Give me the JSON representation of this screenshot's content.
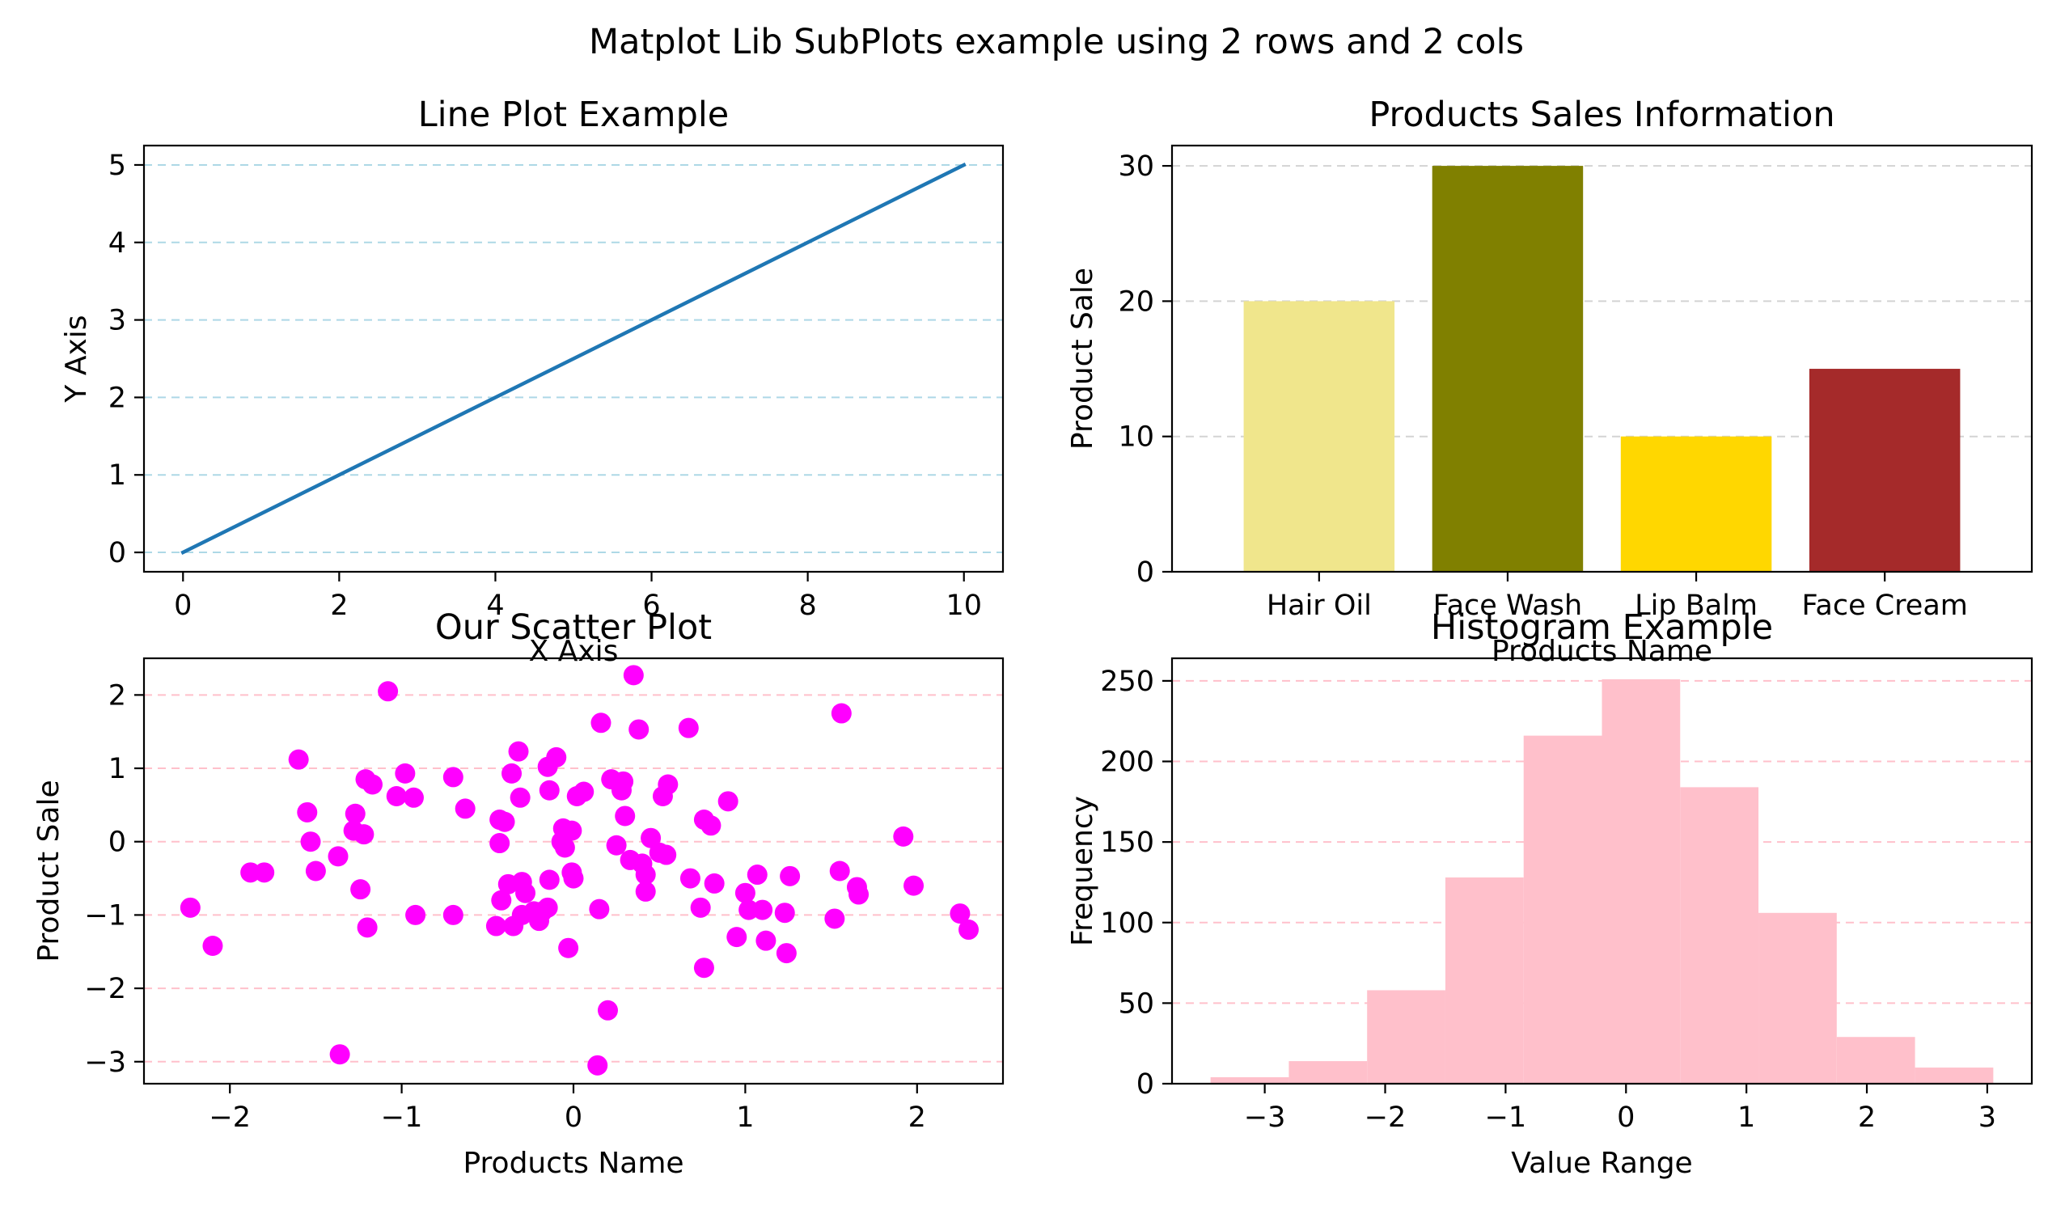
{
  "figure": {
    "suptitle": "Matplot Lib SubPlots example using 2 rows and 2 cols"
  },
  "chart_data": [
    {
      "type": "line",
      "title": "Line Plot Example",
      "xlabel": "X Axis",
      "ylabel": "Y Axis",
      "x": [
        0,
        10
      ],
      "y": [
        0,
        5
      ],
      "xlim": [
        -0.5,
        10.5
      ],
      "ylim": [
        -0.25,
        5.25
      ],
      "xticks": [
        0,
        2,
        4,
        6,
        8,
        10
      ],
      "yticks": [
        0,
        1,
        2,
        3,
        4,
        5
      ],
      "xtick_labels": [
        "0",
        "2",
        "4",
        "6",
        "8",
        "10"
      ],
      "ytick_labels": [
        "0",
        "1",
        "2",
        "3",
        "4",
        "5"
      ],
      "line_color": "#1f77b4",
      "grid": "y-axis dashed",
      "grid_color": "#add8e6"
    },
    {
      "type": "bar",
      "title": "Products Sales Information",
      "xlabel": "Products Name",
      "ylabel": "Product Sale",
      "categories": [
        "Hair Oil",
        "Face Wash",
        "Lip Balm",
        "Face Cream"
      ],
      "values": [
        20,
        30,
        10,
        15
      ],
      "colors": [
        "#f0e68c",
        "#808000",
        "#ffd700",
        "#a52a2a"
      ],
      "ylim": [
        0,
        31.5
      ],
      "yticks": [
        0,
        10,
        20,
        30
      ],
      "ytick_labels": [
        "0",
        "10",
        "20",
        "30"
      ],
      "grid": "y-axis dashed",
      "grid_color": "#d3d3d3"
    },
    {
      "type": "scatter",
      "title": "Our Scatter Plot",
      "xlabel": "Products Name",
      "ylabel": "Product Sale",
      "marker_color": "#ff00ff",
      "xlim": [
        -2.5,
        2.5
      ],
      "ylim": [
        -3.3,
        2.5
      ],
      "xticks": [
        -2,
        -1,
        0,
        1,
        2
      ],
      "yticks": [
        -3,
        -2,
        -1,
        0,
        1,
        2
      ],
      "xtick_labels": [
        "−2",
        "−1",
        "0",
        "1",
        "2"
      ],
      "ytick_labels": [
        "−3",
        "−2",
        "−1",
        "0",
        "1",
        "2"
      ],
      "grid": "y-axis dashed",
      "grid_color": "#ffc0cb",
      "points": [
        [
          -2.23,
          -0.9
        ],
        [
          -2.1,
          -1.42
        ],
        [
          -1.88,
          -0.42
        ],
        [
          -1.8,
          -0.42
        ],
        [
          -1.6,
          1.12
        ],
        [
          -1.55,
          0.4
        ],
        [
          -1.53,
          0.0
        ],
        [
          -1.5,
          -0.4
        ],
        [
          -1.37,
          -0.2
        ],
        [
          -1.36,
          -2.9
        ],
        [
          -1.28,
          0.15
        ],
        [
          -1.27,
          0.38
        ],
        [
          -1.24,
          -0.65
        ],
        [
          -1.22,
          0.1
        ],
        [
          -1.21,
          0.85
        ],
        [
          -1.2,
          -1.17
        ],
        [
          -1.17,
          0.78
        ],
        [
          -1.08,
          2.05
        ],
        [
          -1.03,
          0.62
        ],
        [
          -0.98,
          0.93
        ],
        [
          -0.93,
          0.6
        ],
        [
          -0.92,
          -1.0
        ],
        [
          -0.7,
          0.88
        ],
        [
          -0.7,
          -1.0
        ],
        [
          -0.63,
          0.45
        ],
        [
          -0.45,
          -1.15
        ],
        [
          -0.43,
          0.3
        ],
        [
          -0.43,
          -0.02
        ],
        [
          -0.42,
          -0.8
        ],
        [
          -0.4,
          0.27
        ],
        [
          -0.38,
          -0.58
        ],
        [
          -0.36,
          0.93
        ],
        [
          -0.35,
          -1.15
        ],
        [
          -0.32,
          1.23
        ],
        [
          -0.31,
          0.6
        ],
        [
          -0.3,
          -0.55
        ],
        [
          -0.3,
          -1.0
        ],
        [
          -0.28,
          -0.7
        ],
        [
          -0.23,
          -0.95
        ],
        [
          -0.2,
          -1.08
        ],
        [
          -0.18,
          -0.95
        ],
        [
          -0.15,
          -0.9
        ],
        [
          -0.15,
          1.02
        ],
        [
          -0.14,
          -0.52
        ],
        [
          -0.14,
          0.7
        ],
        [
          -0.1,
          1.15
        ],
        [
          -0.07,
          0.0
        ],
        [
          -0.06,
          0.18
        ],
        [
          -0.05,
          -0.08
        ],
        [
          -0.03,
          -1.45
        ],
        [
          -0.01,
          0.15
        ],
        [
          -0.01,
          -0.42
        ],
        [
          0.0,
          -0.5
        ],
        [
          0.02,
          0.62
        ],
        [
          0.06,
          0.68
        ],
        [
          0.14,
          -3.05
        ],
        [
          0.15,
          -0.92
        ],
        [
          0.16,
          1.62
        ],
        [
          0.2,
          -2.3
        ],
        [
          0.22,
          0.85
        ],
        [
          0.25,
          -0.05
        ],
        [
          0.28,
          0.7
        ],
        [
          0.29,
          0.82
        ],
        [
          0.3,
          0.35
        ],
        [
          0.33,
          -0.25
        ],
        [
          0.35,
          2.27
        ],
        [
          0.38,
          1.53
        ],
        [
          0.4,
          -0.3
        ],
        [
          0.42,
          -0.45
        ],
        [
          0.42,
          -0.68
        ],
        [
          0.45,
          0.05
        ],
        [
          0.5,
          -0.15
        ],
        [
          0.52,
          0.62
        ],
        [
          0.54,
          -0.18
        ],
        [
          0.55,
          0.78
        ],
        [
          0.67,
          1.55
        ],
        [
          0.68,
          -0.5
        ],
        [
          0.74,
          -0.9
        ],
        [
          0.76,
          0.3
        ],
        [
          0.76,
          -1.72
        ],
        [
          0.8,
          0.22
        ],
        [
          0.82,
          -0.57
        ],
        [
          0.9,
          0.55
        ],
        [
          0.95,
          -1.3
        ],
        [
          1.0,
          -0.7
        ],
        [
          1.02,
          -0.93
        ],
        [
          1.07,
          -0.45
        ],
        [
          1.1,
          -0.93
        ],
        [
          1.12,
          -1.35
        ],
        [
          1.23,
          -0.97
        ],
        [
          1.24,
          -1.52
        ],
        [
          1.26,
          -0.47
        ],
        [
          1.52,
          -1.05
        ],
        [
          1.55,
          -0.4
        ],
        [
          1.56,
          1.75
        ],
        [
          1.65,
          -0.62
        ],
        [
          1.66,
          -0.72
        ],
        [
          1.92,
          0.07
        ],
        [
          1.98,
          -0.6
        ],
        [
          2.25,
          -0.98
        ],
        [
          2.3,
          -1.2
        ]
      ]
    },
    {
      "type": "bar",
      "subtype": "histogram",
      "title": "Histogram Example",
      "xlabel": "Value Range",
      "ylabel": "Frequency",
      "bar_color": "#ffc0cb",
      "bin_edges": [
        -3.45,
        -2.8,
        -2.15,
        -1.5,
        -0.85,
        -0.2,
        0.45,
        1.1,
        1.75,
        2.4,
        3.05
      ],
      "values": [
        4,
        14,
        58,
        128,
        216,
        251,
        184,
        106,
        29,
        10
      ],
      "xlim": [
        -3.77,
        3.37
      ],
      "ylim": [
        0,
        264
      ],
      "xticks": [
        -3,
        -2,
        -1,
        0,
        1,
        2,
        3
      ],
      "yticks": [
        0,
        50,
        100,
        150,
        200,
        250
      ],
      "xtick_labels": [
        "−3",
        "−2",
        "−1",
        "0",
        "1",
        "2",
        "3"
      ],
      "ytick_labels": [
        "0",
        "50",
        "100",
        "150",
        "200",
        "250"
      ],
      "grid": "y-axis dashed",
      "grid_color": "#ffc0cb"
    }
  ]
}
